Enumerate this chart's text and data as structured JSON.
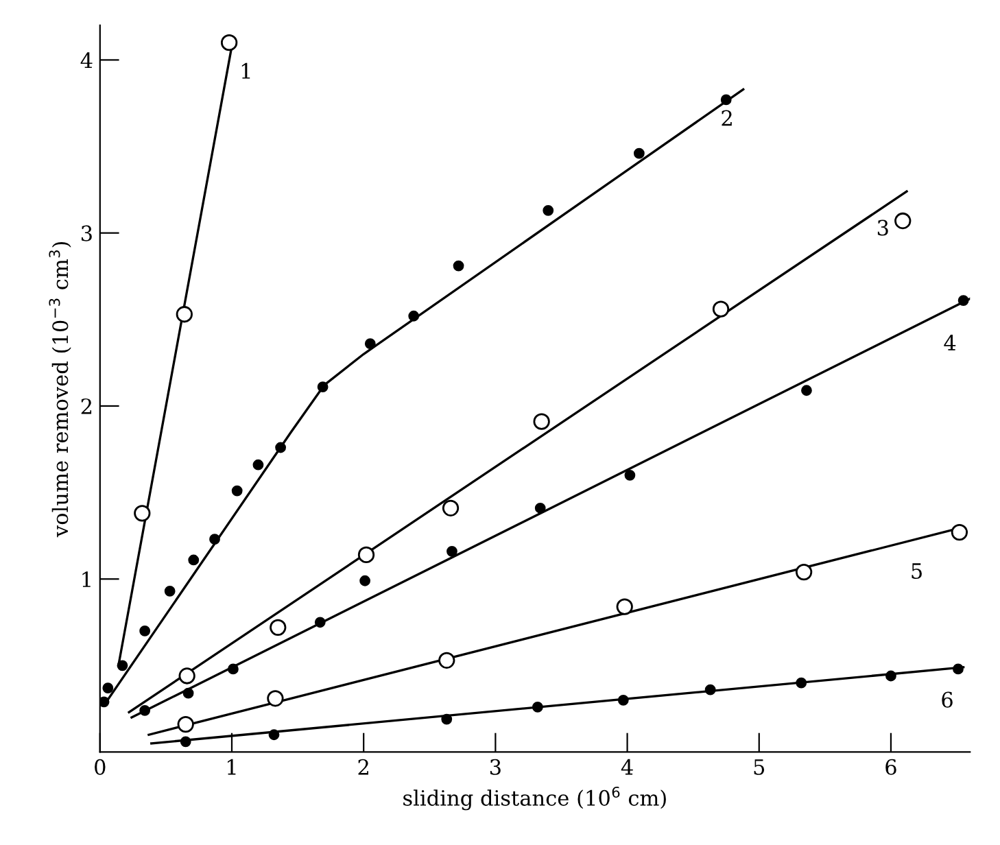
{
  "chart_data": {
    "type": "scatter",
    "xlabel": "sliding distance (10$^{6}$ cm)",
    "ylabel": "volume removed (10$^{−3}$ cm$^{3}$)",
    "xlim": [
      0,
      6.6
    ],
    "ylim": [
      0,
      4.2
    ],
    "xticks": [
      0,
      1,
      2,
      3,
      4,
      5,
      6
    ],
    "yticks": [
      1,
      2,
      3,
      4
    ],
    "grid": false,
    "legend": false,
    "series": [
      {
        "type": "line",
        "name": "1",
        "marker": "none",
        "color": "#000000",
        "x": [
          0.14,
          1.0
        ],
        "values": [
          0.5,
          4.08
        ]
      },
      {
        "type": "line",
        "name": "2",
        "marker": "none",
        "color": "#000000",
        "x": [
          0.03,
          1.45,
          1.7,
          2.0,
          4.88
        ],
        "values": [
          0.27,
          1.85,
          2.12,
          2.3,
          3.83
        ]
      },
      {
        "type": "line",
        "name": "3",
        "marker": "none",
        "color": "#000000",
        "x": [
          0.22,
          6.12
        ],
        "values": [
          0.23,
          3.24
        ]
      },
      {
        "type": "line",
        "name": "4",
        "marker": "none",
        "color": "#000000",
        "x": [
          0.24,
          6.6
        ],
        "values": [
          0.2,
          2.62
        ]
      },
      {
        "type": "line",
        "name": "5",
        "marker": "none",
        "color": "#000000",
        "x": [
          0.37,
          6.55
        ],
        "values": [
          0.1,
          1.3
        ]
      },
      {
        "type": "line",
        "name": "6",
        "marker": "none",
        "color": "#000000",
        "x": [
          0.39,
          6.55
        ],
        "values": [
          0.05,
          0.49
        ]
      },
      {
        "marker": "circle",
        "color": "#ffffff",
        "x": [
          0.32,
          0.64,
          0.98
        ],
        "values": [
          1.38,
          2.53,
          4.1
        ]
      },
      {
        "marker": "circle",
        "color": "#000000",
        "x": [
          0.03,
          0.06,
          0.17,
          0.34,
          0.53,
          0.71,
          0.87,
          1.04,
          1.2,
          1.37,
          1.69,
          2.05,
          2.38,
          2.72,
          3.4,
          4.09,
          4.75
        ],
        "values": [
          0.29,
          0.37,
          0.5,
          0.7,
          0.93,
          1.11,
          1.23,
          1.51,
          1.66,
          1.76,
          2.11,
          2.36,
          2.52,
          2.81,
          3.13,
          3.46,
          3.77
        ]
      },
      {
        "marker": "circle",
        "color": "#ffffff",
        "x": [
          0.66,
          1.35,
          2.02,
          2.66,
          3.35,
          4.71,
          6.09
        ],
        "values": [
          0.44,
          0.72,
          1.14,
          1.41,
          1.91,
          2.56,
          3.07
        ]
      },
      {
        "marker": "circle",
        "color": "#000000",
        "x": [
          0.34,
          0.67,
          1.01,
          1.67,
          2.01,
          2.67,
          3.34,
          4.02,
          5.36,
          6.55
        ],
        "values": [
          0.24,
          0.34,
          0.48,
          0.75,
          0.99,
          1.16,
          1.41,
          1.6,
          2.09,
          2.61
        ]
      },
      {
        "marker": "circle",
        "color": "#ffffff",
        "x": [
          0.65,
          1.33,
          2.63,
          3.98,
          5.34,
          6.52
        ],
        "values": [
          0.16,
          0.31,
          0.53,
          0.84,
          1.04,
          1.27
        ]
      },
      {
        "marker": "circle",
        "color": "#000000",
        "x": [
          0.65,
          1.32,
          2.63,
          3.32,
          3.97,
          4.63,
          5.32,
          6.0,
          6.51
        ],
        "values": [
          0.06,
          0.1,
          0.19,
          0.26,
          0.3,
          0.36,
          0.4,
          0.44,
          0.48
        ]
      }
    ]
  }
}
